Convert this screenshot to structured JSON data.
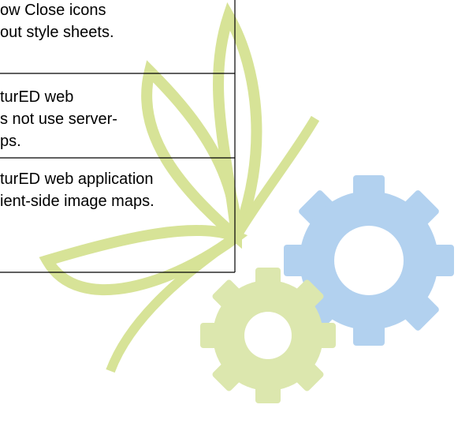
{
  "table": {
    "rows": [
      [
        "ow Close icons",
        "out style sheets."
      ],
      [
        "turED web",
        "s not use server-",
        "ps."
      ],
      [
        "turED web application",
        "ient-side image maps."
      ]
    ]
  }
}
